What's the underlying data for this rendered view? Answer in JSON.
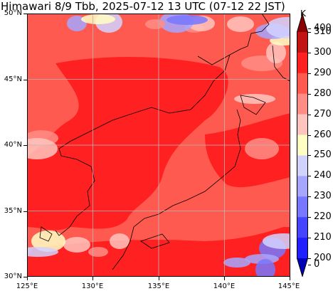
{
  "title": "Himawari 8/9 Tbb, 2025-07-12 13 UTC (07-12 22 JST)",
  "latitude_labels": [
    "50°N",
    "45°N",
    "40°N",
    "35°N",
    "30°N"
  ],
  "longitude_labels": [
    "125°E",
    "130°E",
    "135°E",
    "140°E",
    "145°E"
  ],
  "colorbar": {
    "unit": "K",
    "labels": [
      "400",
      "310",
      "300",
      "290",
      "280",
      "270",
      "260",
      "250",
      "240",
      "230",
      "220",
      "210",
      "200",
      "0"
    ],
    "colors": [
      "#8b0000",
      "#c21414",
      "#ff2121",
      "#ff5a4f",
      "#ff8d85",
      "#ffc4bd",
      "#ffffc4",
      "#d2d2ff",
      "#a6a6ff",
      "#7777ff",
      "#4545ff",
      "#1f1fff",
      "#0000b8"
    ]
  },
  "map": {
    "extent": {
      "lon": [
        125,
        145
      ],
      "lat": [
        30,
        50
      ]
    },
    "grid_lons": [
      130,
      135,
      140
    ],
    "grid_lats": [
      35,
      40,
      45
    ],
    "background_color": "#ff5a4f",
    "warm_color": "#ff2121",
    "cloud_colors": [
      "#ff8d85",
      "#ffc4bd",
      "#ffffc4",
      "#d2d2ff",
      "#a6a6ff",
      "#7777ff"
    ]
  }
}
